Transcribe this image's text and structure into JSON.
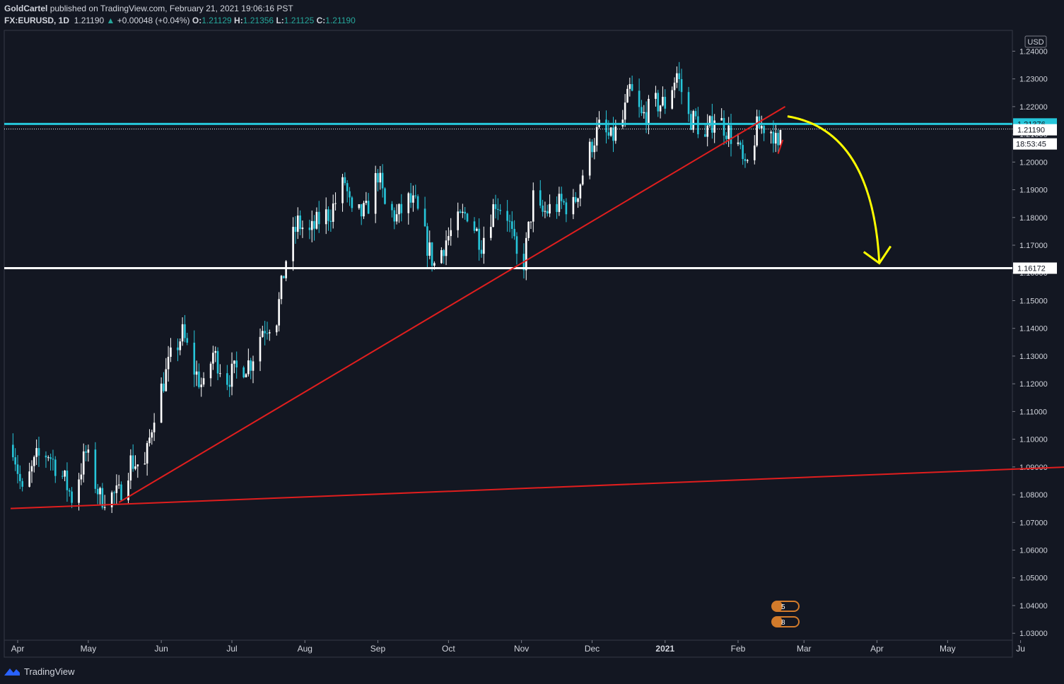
{
  "header": {
    "author": "GoldCartel",
    "published": "published on TradingView.com, February 21, 2021 19:06:16 PST",
    "symbol": "FX:EURUSD, 1D",
    "last": "1.21190",
    "change": "+0.00048 (+0.04%)",
    "o_label": "O:",
    "o": "1.21129",
    "h_label": "H:",
    "h": "1.21356",
    "l_label": "L:",
    "l": "1.21125",
    "c_label": "C:",
    "c": "1.21190"
  },
  "footer": {
    "brand": "TradingView"
  },
  "colors": {
    "background": "#131722",
    "up": "#ffffff",
    "down": "#26c6da",
    "trend": "#e01e1e",
    "support": "#ffffff",
    "resistance": "#26c6da",
    "arrow": "#ffff00"
  },
  "chart_data": {
    "type": "candlestick",
    "symbol": "FX:EURUSD",
    "timeframe": "1D",
    "currency_label": "USD",
    "ylim": [
      1.0275,
      1.2475
    ],
    "y_ticks": [
      "1.03000",
      "1.04000",
      "1.05000",
      "1.06000",
      "1.07000",
      "1.08000",
      "1.09000",
      "1.10000",
      "1.11000",
      "1.12000",
      "1.13000",
      "1.14000",
      "1.15000",
      "1.16000",
      "1.17000",
      "1.18000",
      "1.19000",
      "1.20000",
      "1.21000",
      "1.22000",
      "1.23000",
      "1.24000"
    ],
    "x_ticks": [
      {
        "label": "Apr",
        "day": 0
      },
      {
        "label": "May",
        "day": 30
      },
      {
        "label": "Jun",
        "day": 61
      },
      {
        "label": "Jul",
        "day": 91
      },
      {
        "label": "Aug",
        "day": 122
      },
      {
        "label": "Sep",
        "day": 153
      },
      {
        "label": "Oct",
        "day": 183
      },
      {
        "label": "Nov",
        "day": 214
      },
      {
        "label": "Dec",
        "day": 244
      },
      {
        "label": "2021",
        "day": 275
      },
      {
        "label": "Feb",
        "day": 306
      },
      {
        "label": "Mar",
        "day": 334
      },
      {
        "label": "Apr",
        "day": 365
      },
      {
        "label": "May",
        "day": 395
      },
      {
        "label": "Ju",
        "day": 426
      }
    ],
    "trend_closes": [
      [
        "2020-03-30",
        1.098
      ],
      [
        "2020-04-03",
        1.08
      ],
      [
        "2020-04-09",
        1.093
      ],
      [
        "2020-04-14",
        1.095
      ],
      [
        "2020-04-21",
        1.085
      ],
      [
        "2020-04-24",
        1.079
      ],
      [
        "2020-04-30",
        1.095
      ],
      [
        "2020-05-06",
        1.079
      ],
      [
        "2020-05-14",
        1.08
      ],
      [
        "2020-05-19",
        1.092
      ],
      [
        "2020-05-25",
        1.09
      ],
      [
        "2020-05-29",
        1.11
      ],
      [
        "2020-06-05",
        1.129
      ],
      [
        "2020-06-10",
        1.138
      ],
      [
        "2020-06-15",
        1.125
      ],
      [
        "2020-06-19",
        1.118
      ],
      [
        "2020-06-23",
        1.131
      ],
      [
        "2020-06-29",
        1.122
      ],
      [
        "2020-07-03",
        1.125
      ],
      [
        "2020-07-09",
        1.128
      ],
      [
        "2020-07-14",
        1.14
      ],
      [
        "2020-07-20",
        1.144
      ],
      [
        "2020-07-24",
        1.165
      ],
      [
        "2020-07-29",
        1.178
      ],
      [
        "2020-08-03",
        1.174
      ],
      [
        "2020-08-07",
        1.179
      ],
      [
        "2020-08-12",
        1.182
      ],
      [
        "2020-08-18",
        1.193
      ],
      [
        "2020-08-21",
        1.18
      ],
      [
        "2020-08-27",
        1.182
      ],
      [
        "2020-09-01",
        1.196
      ],
      [
        "2020-09-04",
        1.184
      ],
      [
        "2020-09-09",
        1.18
      ],
      [
        "2020-09-14",
        1.186
      ],
      [
        "2020-09-17",
        1.184
      ],
      [
        "2020-09-22",
        1.17
      ],
      [
        "2020-09-25",
        1.163
      ],
      [
        "2020-09-30",
        1.172
      ],
      [
        "2020-10-05",
        1.178
      ],
      [
        "2020-10-09",
        1.182
      ],
      [
        "2020-10-15",
        1.171
      ],
      [
        "2020-10-21",
        1.186
      ],
      [
        "2020-10-26",
        1.181
      ],
      [
        "2020-10-30",
        1.165
      ],
      [
        "2020-11-02",
        1.164
      ],
      [
        "2020-11-06",
        1.187
      ],
      [
        "2020-11-09",
        1.181
      ],
      [
        "2020-11-13",
        1.183
      ],
      [
        "2020-11-18",
        1.185
      ],
      [
        "2020-11-23",
        1.184
      ],
      [
        "2020-11-27",
        1.196
      ],
      [
        "2020-12-01",
        1.207
      ],
      [
        "2020-12-04",
        1.212
      ],
      [
        "2020-12-09",
        1.208
      ],
      [
        "2020-12-14",
        1.215
      ],
      [
        "2020-12-17",
        1.226
      ],
      [
        "2020-12-22",
        1.216
      ],
      [
        "2020-12-28",
        1.221
      ],
      [
        "2021-01-01",
        1.221
      ],
      [
        "2021-01-06",
        1.232
      ],
      [
        "2021-01-11",
        1.216
      ],
      [
        "2021-01-14",
        1.215
      ],
      [
        "2021-01-18",
        1.208
      ],
      [
        "2021-01-22",
        1.217
      ],
      [
        "2021-01-27",
        1.212
      ],
      [
        "2021-02-01",
        1.206
      ],
      [
        "2021-02-04",
        1.196
      ],
      [
        "2021-02-09",
        1.212
      ],
      [
        "2021-02-12",
        1.213
      ],
      [
        "2021-02-16",
        1.211
      ],
      [
        "2021-02-18",
        1.203
      ],
      [
        "2021-02-19",
        1.2119
      ]
    ],
    "horizontal_levels": [
      {
        "price": 1.21376,
        "label": "1.21376",
        "color": "#26c6da"
      },
      {
        "price": 1.2119,
        "label": "1.21190",
        "color": "#ffffff",
        "style": "dotted"
      },
      {
        "price": 1.16172,
        "label": "1.16172",
        "color": "#ffffff"
      }
    ],
    "countdown": "18:53:45",
    "trendlines": [
      {
        "from": [
          "2020-03-29",
          1.075
        ],
        "to": [
          "2021-07-01",
          1.0903
        ]
      },
      {
        "from": [
          "2020-05-14",
          1.0772
        ],
        "to": [
          "2021-02-21",
          1.22
        ]
      },
      {
        "from": [
          "2021-02-18",
          1.203
        ],
        "to": [
          "2021-02-20",
          1.208
        ]
      }
    ],
    "projection_arrow": {
      "from": [
        "2021-02-22",
        1.2165
      ],
      "to": [
        "2021-04-02",
        1.1635
      ]
    },
    "event_badges": [
      "5",
      "8"
    ]
  }
}
